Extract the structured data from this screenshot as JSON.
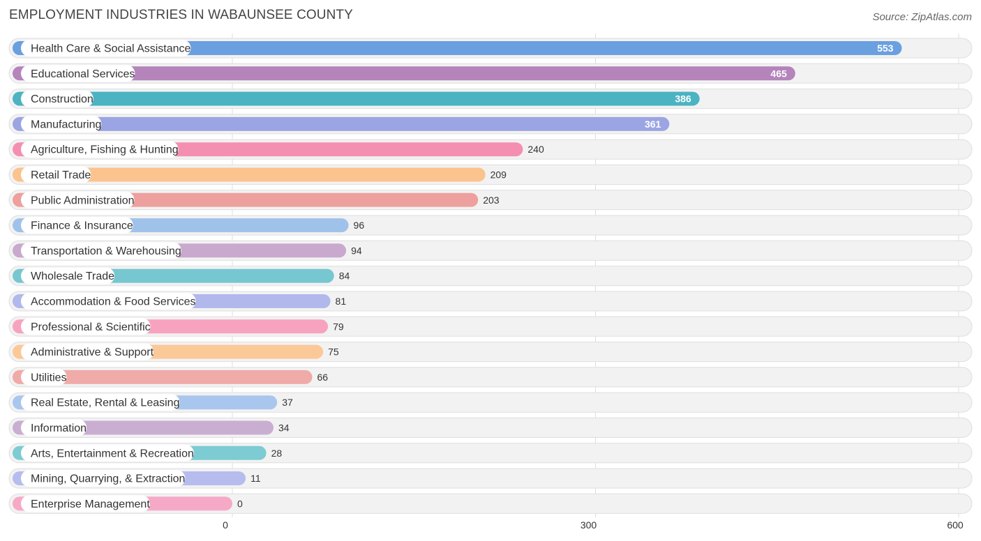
{
  "chart_data": {
    "type": "bar",
    "orientation": "horizontal",
    "title": "EMPLOYMENT INDUSTRIES IN WABAUNSEE COUNTY",
    "source": "Source: ZipAtlas.com",
    "categories": [
      "Health Care & Social Assistance",
      "Educational Services",
      "Construction",
      "Manufacturing",
      "Agriculture, Fishing & Hunting",
      "Retail Trade",
      "Public Administration",
      "Finance & Insurance",
      "Transportation & Warehousing",
      "Wholesale Trade",
      "Accommodation & Food Services",
      "Professional & Scientific",
      "Administrative & Support",
      "Utilities",
      "Real Estate, Rental & Leasing",
      "Information",
      "Arts, Entertainment & Recreation",
      "Mining, Quarrying, & Extraction",
      "Enterprise Management"
    ],
    "values": [
      553,
      465,
      386,
      361,
      240,
      209,
      203,
      96,
      94,
      84,
      81,
      79,
      75,
      66,
      37,
      34,
      28,
      11,
      0
    ],
    "value_labels": [
      "553",
      "465",
      "386",
      "361",
      "240",
      "209",
      "203",
      "96",
      "94",
      "84",
      "81",
      "79",
      "75",
      "66",
      "37",
      "34",
      "28",
      "11",
      "0"
    ],
    "colors": [
      "#6a9fe0",
      "#b484bb",
      "#4bb3c1",
      "#9ba5e3",
      "#f58fb1",
      "#fbc38d",
      "#eda09d",
      "#9fc2ea",
      "#c9a9ce",
      "#77c7d0",
      "#b1b8ec",
      "#f7a3c0",
      "#fbc897",
      "#f0aaa8",
      "#a8c6ee",
      "#c9aed2",
      "#7dcbd3",
      "#b7bcee",
      "#f6a9c6"
    ],
    "xlim": [
      0,
      600
    ],
    "xticks": [
      0,
      300,
      600
    ],
    "xtick_labels": [
      "0",
      "300",
      "600"
    ],
    "grid": true,
    "legend": "none"
  }
}
